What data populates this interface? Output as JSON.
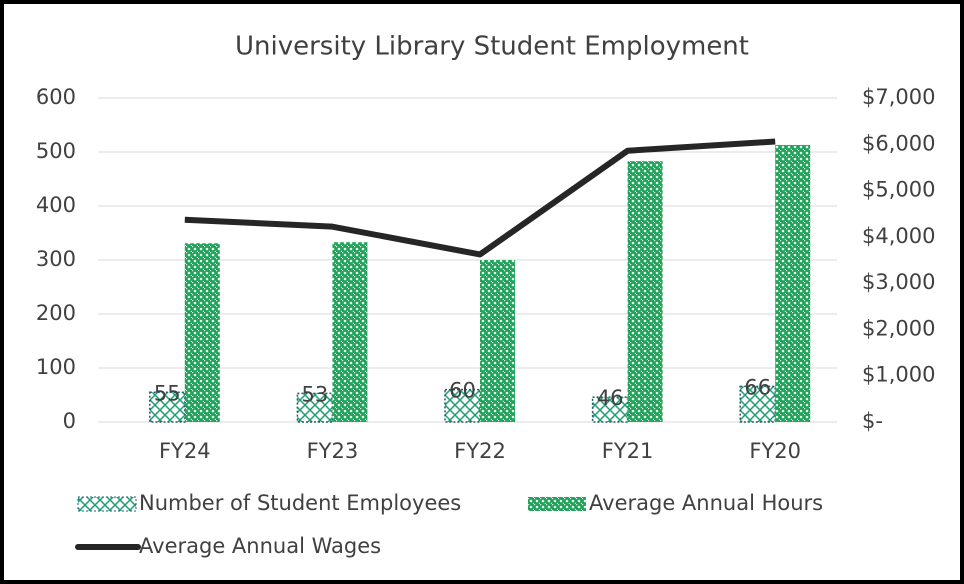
{
  "chart_data": {
    "type": "bar",
    "title": "University Library Student Employment",
    "categories": [
      "FY24",
      "FY23",
      "FY22",
      "FY21",
      "FY20"
    ],
    "series": [
      {
        "name": "Number of Student Employees",
        "type": "bar",
        "color": "#1f9e72",
        "values": [
          55,
          53,
          60,
          46,
          66
        ]
      },
      {
        "name": "Average Annual Hours",
        "type": "bar",
        "color": "#1fa35a",
        "values": [
          331,
          333,
          300,
          483,
          513
        ]
      },
      {
        "name": "Average Annual Wages",
        "type": "line",
        "axis": "y2",
        "color": "#262626",
        "values": [
          4370,
          4220,
          3620,
          5860,
          6060
        ]
      }
    ],
    "ylim": [
      0,
      600
    ],
    "yticks": [
      0,
      100,
      200,
      300,
      400,
      500,
      600
    ],
    "y2lim": [
      0,
      7000
    ],
    "y2ticks": [
      {
        "value": 0,
        "label": "$-"
      },
      {
        "value": 1000,
        "label": "$1,000"
      },
      {
        "value": 2000,
        "label": "$2,000"
      },
      {
        "value": 3000,
        "label": "$3,000"
      },
      {
        "value": 4000,
        "label": "$4,000"
      },
      {
        "value": 5000,
        "label": "$5,000"
      },
      {
        "value": 6000,
        "label": "$6,000"
      },
      {
        "value": 7000,
        "label": "$7,000"
      }
    ],
    "grid": true,
    "legend": "bottom"
  }
}
